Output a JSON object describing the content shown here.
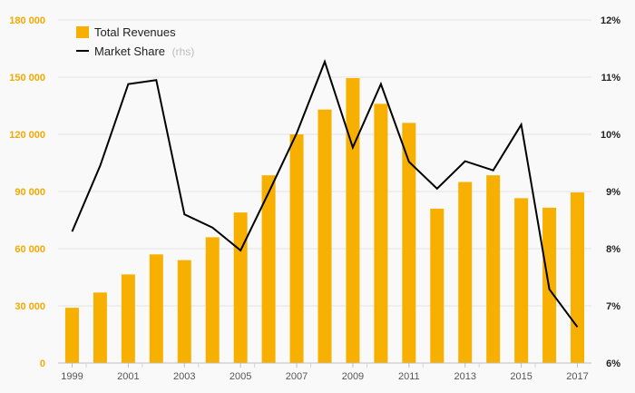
{
  "chart_data": {
    "type": "bar",
    "title": "",
    "xlabel": "",
    "ylabel": "",
    "categories": [
      "1999",
      "2000",
      "2001",
      "2002",
      "2003",
      "2004",
      "2005",
      "2006",
      "2007",
      "2008",
      "2009",
      "2010",
      "2011",
      "2012",
      "2013",
      "2014",
      "2015",
      "2016",
      "2017"
    ],
    "x_tick_labels": [
      "1999",
      "2001",
      "2003",
      "2005",
      "2007",
      "2009",
      "2011",
      "2013",
      "2015",
      "2017"
    ],
    "series": [
      {
        "name": "Total Revenues",
        "type": "bar",
        "axis": "left",
        "color": "#f7b000",
        "values": [
          29000,
          37000,
          46500,
          57000,
          54000,
          66000,
          79000,
          98500,
          120000,
          133000,
          149500,
          136000,
          126000,
          81000,
          95000,
          98500,
          86500,
          81500,
          89500
        ]
      },
      {
        "name": "Market Share",
        "name_suffix": "(rhs)",
        "type": "line",
        "axis": "right",
        "color": "#000000",
        "values": [
          8.3,
          9.45,
          10.88,
          10.95,
          8.6,
          8.37,
          7.97,
          8.98,
          10.02,
          11.27,
          9.77,
          10.88,
          9.52,
          9.05,
          9.53,
          9.37,
          10.17,
          7.29,
          6.63
        ]
      }
    ],
    "y_left": {
      "ylim": [
        0,
        180000
      ],
      "ticks": [
        0,
        30000,
        60000,
        90000,
        120000,
        150000,
        180000
      ],
      "tick_labels": [
        "0",
        "30 000",
        "60 000",
        "90 000",
        "120 000",
        "150 000",
        "180 000"
      ]
    },
    "y_right": {
      "ylim": [
        6,
        12
      ],
      "ticks": [
        6,
        7,
        8,
        9,
        10,
        11,
        12
      ],
      "tick_labels": [
        "6%",
        "7%",
        "8%",
        "9%",
        "10%",
        "11%",
        "12%"
      ]
    },
    "grid": true,
    "legend_position": "top-left"
  }
}
